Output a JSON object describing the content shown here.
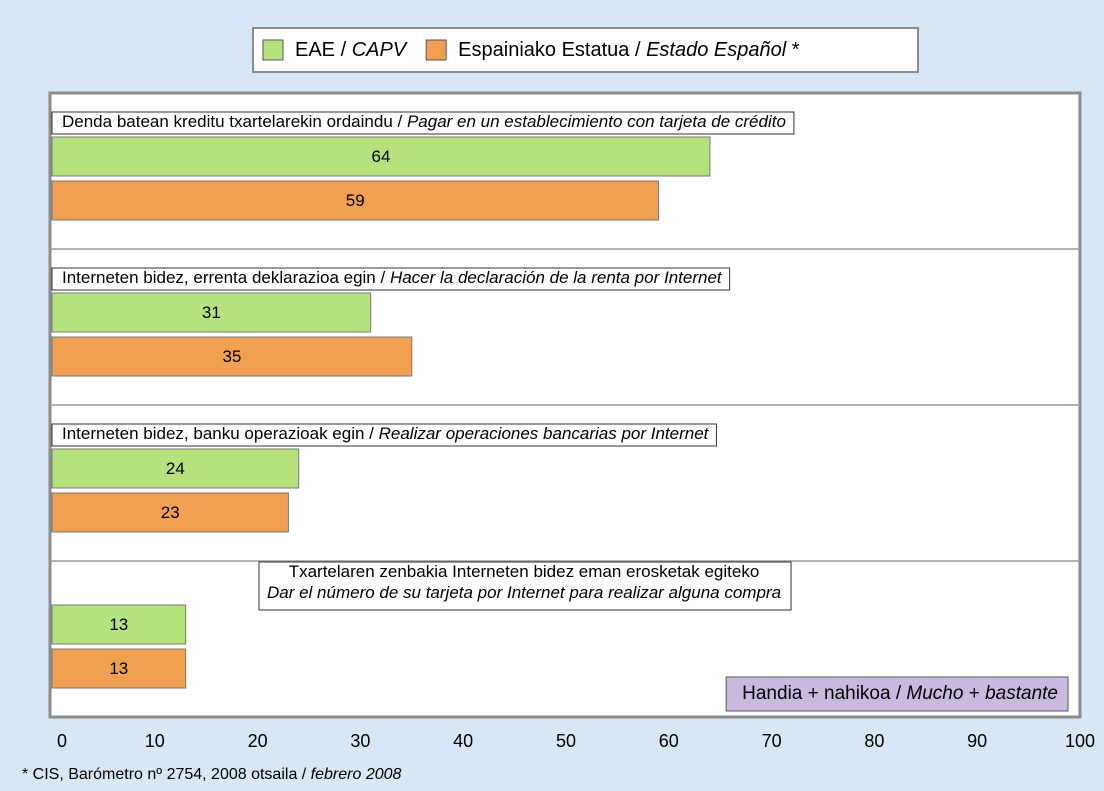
{
  "chart_data": {
    "type": "barh",
    "categories": [
      [
        [
          {
            "text": "Denda batean kreditu txartelarekin ordaindu / "
          },
          {
            "text": "Pagar en un establecimiento con tarjeta de crédito",
            "italic": true
          }
        ]
      ],
      [
        [
          {
            "text": "Interneten bidez, errenta deklarazioa egin / "
          },
          {
            "text": "Hacer la declaración de la renta por Internet",
            "italic": true
          }
        ]
      ],
      [
        [
          {
            "text": "Interneten bidez, banku operazioak egin / "
          },
          {
            "text": "Realizar operaciones bancarias por Internet",
            "italic": true
          }
        ]
      ],
      [
        [
          {
            "text": "Txartelaren zenbakia Interneten bidez eman erosketak egiteko"
          }
        ],
        [
          {
            "text": "Dar el número de su tarjeta por Internet para realizar alguna compra",
            "italic": true
          }
        ]
      ]
    ],
    "series": [
      {
        "name": [
          {
            "text": "EAE / "
          },
          {
            "text": "CAPV",
            "italic": true
          }
        ],
        "color": "#b5e27c",
        "values": [
          64,
          31,
          24,
          13
        ]
      },
      {
        "name": [
          {
            "text": "Espainiako Estatua / "
          },
          {
            "text": "Estado Español",
            "italic": true
          },
          {
            "text": " *"
          }
        ],
        "color": "#f0a050",
        "values": [
          59,
          35,
          23,
          13
        ]
      }
    ],
    "xlim": [
      0,
      100
    ],
    "xticks": [
      0,
      10,
      20,
      30,
      40,
      50,
      60,
      70,
      80,
      90,
      100
    ],
    "annotation": [
      {
        "text": "Handia + nahikoa / "
      },
      {
        "text": "Mucho",
        "italic": true
      },
      {
        "text": " + "
      },
      {
        "text": "bastante",
        "italic": true
      }
    ],
    "footnote": [
      {
        "text": "* CIS, Barómetro nº 2754, 2008 otsaila / "
      },
      {
        "text": "febrero 2008",
        "italic": true
      }
    ]
  }
}
